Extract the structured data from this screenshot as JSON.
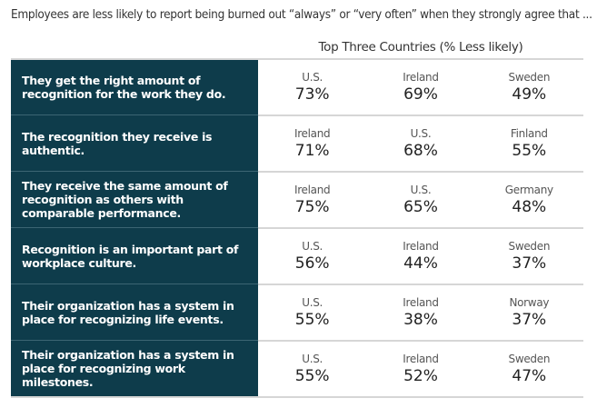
{
  "intro": "Employees are less likely to report being burned out “always” or “very often” when they strongly agree that ...",
  "column_header": "Top Three Countries (% Less likely)",
  "colors": {
    "label_bg": "#0e3c4b"
  },
  "rows": [
    {
      "statement": "They get the right amount of recognition for the work they do.",
      "results": [
        {
          "country": "U.S.",
          "value": "73%"
        },
        {
          "country": "Ireland",
          "value": "69%"
        },
        {
          "country": "Sweden",
          "value": "49%"
        }
      ]
    },
    {
      "statement": "The recognition they receive is authentic.",
      "results": [
        {
          "country": "Ireland",
          "value": "71%"
        },
        {
          "country": "U.S.",
          "value": "68%"
        },
        {
          "country": "Finland",
          "value": "55%"
        }
      ]
    },
    {
      "statement": "They receive the same amount of recognition as others with comparable performance.",
      "results": [
        {
          "country": "Ireland",
          "value": "75%"
        },
        {
          "country": "U.S.",
          "value": "65%"
        },
        {
          "country": "Germany",
          "value": "48%"
        }
      ]
    },
    {
      "statement": "Recognition is an important part of workplace culture.",
      "results": [
        {
          "country": "U.S.",
          "value": "56%"
        },
        {
          "country": "Ireland",
          "value": "44%"
        },
        {
          "country": "Sweden",
          "value": "37%"
        }
      ]
    },
    {
      "statement": "Their organization has a system in place for recognizing life events.",
      "results": [
        {
          "country": "U.S.",
          "value": "55%"
        },
        {
          "country": "Ireland",
          "value": "38%"
        },
        {
          "country": "Norway",
          "value": "37%"
        }
      ]
    },
    {
      "statement": "Their organization has a system in place for recognizing work milestones.",
      "results": [
        {
          "country": "U.S.",
          "value": "55%"
        },
        {
          "country": "Ireland",
          "value": "52%"
        },
        {
          "country": "Sweden",
          "value": "47%"
        }
      ]
    }
  ]
}
